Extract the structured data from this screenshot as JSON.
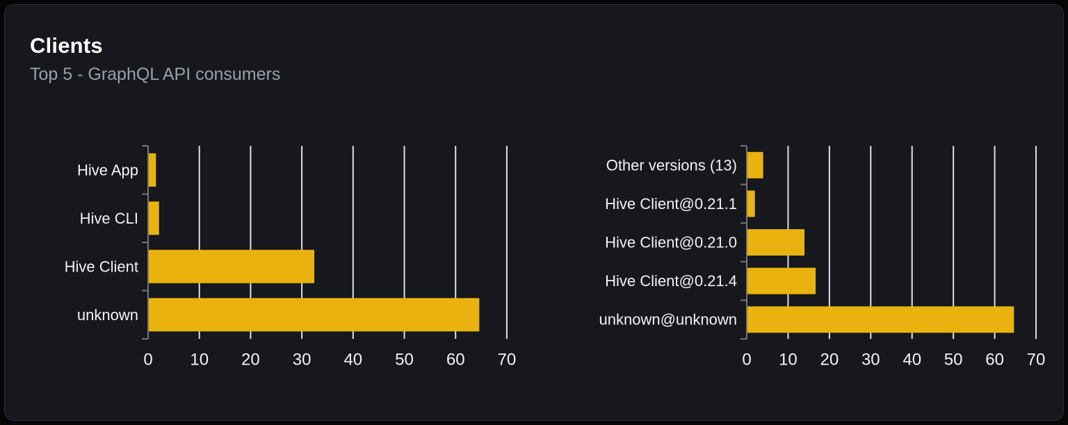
{
  "card": {
    "title": "Clients",
    "subtitle": "Top 5 - GraphQL API consumers"
  },
  "colors": {
    "page_bg": "#050608",
    "card_bg": "#16181d",
    "card_border": "#2a2d33",
    "title": "#ffffff",
    "subtitle": "#9aa0a8",
    "bar": "#e9b20e",
    "gridline": "#dde1e8",
    "axis": "#75777d",
    "category_label": "#f2f3f5",
    "tick_label": "#f2f3f5"
  },
  "chart_data": [
    {
      "type": "bar",
      "name": "clients-by-name",
      "orientation": "horizontal",
      "categories": [
        "Hive App",
        "Hive CLI",
        "Hive Client",
        "unknown"
      ],
      "values": [
        1.4,
        2.0,
        32.3,
        64.5
      ],
      "xlabel": "",
      "ylabel": "",
      "xlim": [
        0,
        70
      ],
      "xticks": [
        0,
        10,
        20,
        30,
        40,
        50,
        60,
        70
      ],
      "grid": true,
      "legend": false
    },
    {
      "type": "bar",
      "name": "clients-by-version",
      "orientation": "horizontal",
      "categories": [
        "Other versions (13)",
        "Hive Client@0.21.1",
        "Hive Client@0.21.0",
        "Hive Client@0.21.4",
        "unknown@unknown"
      ],
      "values": [
        3.8,
        1.8,
        13.8,
        16.5,
        64.5
      ],
      "xlabel": "",
      "ylabel": "",
      "xlim": [
        0,
        70
      ],
      "xticks": [
        0,
        10,
        20,
        30,
        40,
        50,
        60,
        70
      ],
      "grid": true,
      "legend": false
    }
  ]
}
